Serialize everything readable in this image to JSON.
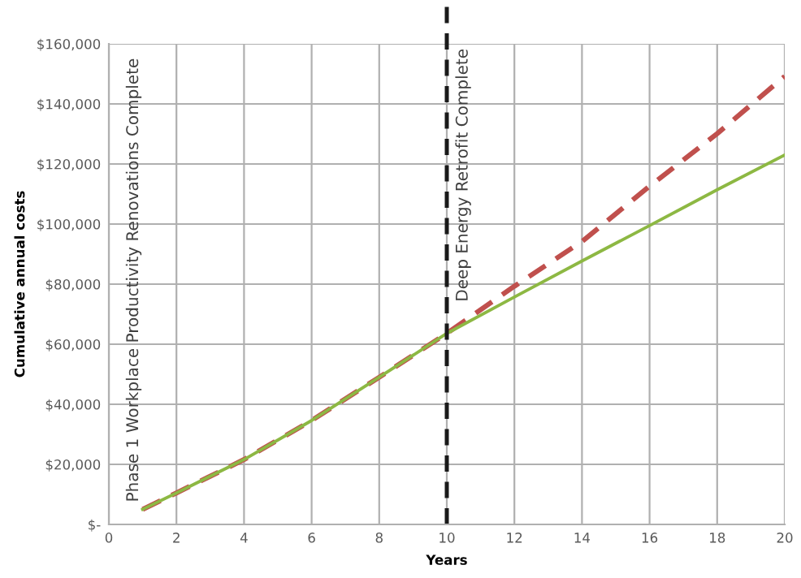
{
  "chart_data": {
    "type": "line",
    "xlabel": "Years",
    "ylabel": "Cumulative annual costs",
    "x": [
      1,
      2,
      4,
      6,
      8,
      10,
      12,
      14,
      16,
      18,
      20
    ],
    "series": [
      {
        "color": "#c0504d",
        "line_style": "dashed",
        "values": [
          5000,
          10500,
          21600,
          34600,
          49000,
          63600,
          79300,
          94200,
          112600,
          130100,
          149200
        ]
      },
      {
        "color": "#8db843",
        "line_style": "solid",
        "values": [
          5000,
          10500,
          21600,
          34600,
          49000,
          63600,
          75700,
          87700,
          99500,
          111400,
          123000
        ]
      }
    ],
    "xlim": [
      0,
      20
    ],
    "xticks": [
      0,
      2,
      4,
      6,
      8,
      10,
      12,
      14,
      16,
      18,
      20
    ],
    "ylim": [
      0,
      160000
    ],
    "yticks": [
      {
        "value": 0,
        "label": "$-"
      },
      {
        "value": 20000,
        "label": "$20,000"
      },
      {
        "value": 40000,
        "label": "$40,000"
      },
      {
        "value": 60000,
        "label": "$60,000"
      },
      {
        "value": 80000,
        "label": "$80,000"
      },
      {
        "value": 100000,
        "label": "$100,000"
      },
      {
        "value": 120000,
        "label": "$120,000"
      },
      {
        "value": 140000,
        "label": "$140,000"
      },
      {
        "value": 160000,
        "label": "$160,000"
      }
    ],
    "grid": true,
    "legend": false,
    "marker": "none",
    "ref_lines": [
      {
        "axis": "x",
        "value": 10,
        "label": "Deep Energy Retrofit Complete",
        "color": "#1a1a1a",
        "line_style": "dashed"
      }
    ],
    "annotations": [
      "Phase 1 Workplace Productivity Renovations Complete"
    ]
  }
}
